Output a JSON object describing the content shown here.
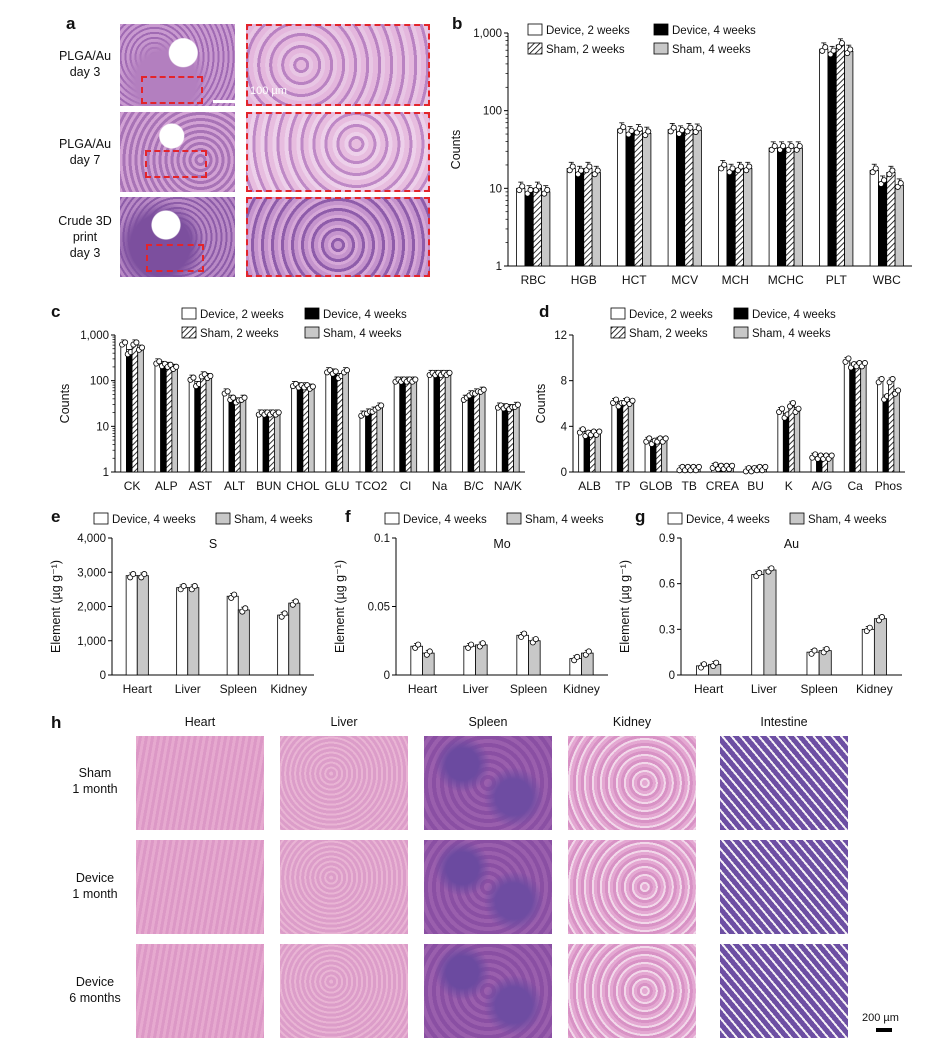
{
  "panels": {
    "a": {
      "label": "a",
      "rows": [
        "PLGA/Au\nday 3",
        "PLGA/Au\nday 7",
        "Crude 3D\nprint\nday 3"
      ],
      "scale_bar": "100 µm"
    },
    "b": {
      "label": "b"
    },
    "c": {
      "label": "c"
    },
    "d": {
      "label": "d"
    },
    "e": {
      "label": "e"
    },
    "f": {
      "label": "f"
    },
    "g": {
      "label": "g"
    },
    "h": {
      "label": "h",
      "columns": [
        "Heart",
        "Liver",
        "Spleen",
        "Kidney",
        "Intestine"
      ],
      "rows": [
        "Sham\n1 month",
        "Device\n1 month",
        "Device\n6 months"
      ],
      "scale_bar": "200 µm"
    }
  },
  "colors": {
    "white": "#ffffff",
    "black": "#000000",
    "hatch": "#ffffff",
    "grey": "#c8c8c8",
    "inset": "#e3242b",
    "he_pink": "#d58fc0",
    "he_purple": "#8a5aa8"
  },
  "chart_data": [
    {
      "id": "b",
      "type": "bar",
      "scale": "log",
      "ylim": [
        1,
        1000
      ],
      "yticks": [
        "1",
        "10",
        "100",
        "1,000"
      ],
      "ylabel": "Counts",
      "categories": [
        "RBC",
        "HGB",
        "HCT",
        "MCV",
        "MCH",
        "MCHC",
        "PLT",
        "WBC"
      ],
      "series": [
        {
          "name": "Device, 2 weeks",
          "values": [
            10,
            18,
            58,
            57,
            19,
            33,
            620,
            17
          ]
        },
        {
          "name": "Device, 4 weeks",
          "values": [
            9,
            16,
            52,
            53,
            17,
            33,
            560,
            12
          ]
        },
        {
          "name": "Sham, 2 weeks",
          "values": [
            10,
            18,
            55,
            57,
            18,
            33,
            700,
            16
          ]
        },
        {
          "name": "Sham, 4 weeks",
          "values": [
            9,
            16,
            51,
            56,
            18,
            33,
            580,
            11
          ]
        }
      ]
    },
    {
      "id": "c",
      "type": "bar",
      "scale": "log",
      "ylim": [
        1,
        1000
      ],
      "yticks": [
        "1",
        "10",
        "100",
        "1,000"
      ],
      "ylabel": "Counts",
      "categories": [
        "CK",
        "ALP",
        "AST",
        "ALT",
        "BUN",
        "CHOL",
        "GLU",
        "TCO2",
        "Cl",
        "Na",
        "B/C",
        "NA/K"
      ],
      "series": [
        {
          "name": "Device, 2 weeks",
          "values": [
            650,
            250,
            110,
            55,
            19,
            80,
            160,
            18,
            100,
            140,
            40,
            27
          ]
        },
        {
          "name": "Device, 4 weeks",
          "values": [
            400,
            220,
            80,
            40,
            19,
            75,
            150,
            20,
            100,
            140,
            50,
            26
          ]
        },
        {
          "name": "Sham, 2 weeks",
          "values": [
            650,
            210,
            130,
            35,
            19,
            75,
            120,
            22,
            100,
            140,
            55,
            25
          ]
        },
        {
          "name": "Sham, 4 weeks",
          "values": [
            500,
            190,
            120,
            40,
            19,
            70,
            160,
            27,
            100,
            140,
            60,
            28
          ]
        }
      ]
    },
    {
      "id": "d",
      "type": "bar",
      "scale": "linear",
      "ylim": [
        0,
        12
      ],
      "yticks": [
        "0",
        "4",
        "8",
        "12"
      ],
      "ylabel": "Counts",
      "categories": [
        "ALB",
        "TP",
        "GLOB",
        "TB",
        "CREA",
        "BU",
        "K",
        "A/G",
        "Ca",
        "Phos"
      ],
      "series": [
        {
          "name": "Device, 2 weeks",
          "values": [
            3.6,
            6.2,
            2.8,
            0.3,
            0.5,
            0.2,
            5.4,
            1.4,
            9.8,
            8.0
          ]
        },
        {
          "name": "Device, 4 weeks",
          "values": [
            3.3,
            5.9,
            2.6,
            0.3,
            0.4,
            0.2,
            4.9,
            1.3,
            9.3,
            6.5
          ]
        },
        {
          "name": "Sham, 2 weeks",
          "values": [
            3.4,
            6.2,
            2.8,
            0.3,
            0.4,
            0.3,
            5.9,
            1.3,
            9.4,
            8.0
          ]
        },
        {
          "name": "Sham, 4 weeks",
          "values": [
            3.4,
            6.1,
            2.8,
            0.3,
            0.4,
            0.3,
            5.4,
            1.3,
            9.4,
            7.0
          ]
        }
      ]
    },
    {
      "id": "e",
      "type": "bar",
      "scale": "linear",
      "ylim": [
        0,
        4000
      ],
      "yticks": [
        "0",
        "1,000",
        "2,000",
        "3,000",
        "4,000"
      ],
      "ylabel": "Element (µg g⁻¹)",
      "title": "S",
      "categories": [
        "Heart",
        "Liver",
        "Spleen",
        "Kidney"
      ],
      "series": [
        {
          "name": "Device, 4 weeks",
          "values": [
            2900,
            2550,
            2300,
            1750
          ]
        },
        {
          "name": "Sham, 4 weeks",
          "values": [
            2900,
            2550,
            1900,
            2100
          ]
        }
      ]
    },
    {
      "id": "f",
      "type": "bar",
      "scale": "linear",
      "ylim": [
        0,
        0.1
      ],
      "yticks": [
        "0",
        "0.05",
        "0.1"
      ],
      "ylabel": "Element (µg g⁻¹)",
      "title": "Mo",
      "categories": [
        "Heart",
        "Liver",
        "Spleen",
        "Kidney"
      ],
      "series": [
        {
          "name": "Device, 4 weeks",
          "values": [
            0.021,
            0.021,
            0.029,
            0.012
          ]
        },
        {
          "name": "Sham, 4 weeks",
          "values": [
            0.016,
            0.022,
            0.025,
            0.016
          ]
        }
      ]
    },
    {
      "id": "g",
      "type": "bar",
      "scale": "linear",
      "ylim": [
        0,
        0.9
      ],
      "yticks": [
        "0",
        "0.3",
        "0.6",
        "0.9"
      ],
      "ylabel": "Element (µg g⁻¹)",
      "title": "Au",
      "categories": [
        "Heart",
        "Liver",
        "Spleen",
        "Kidney"
      ],
      "series": [
        {
          "name": "Device, 4 weeks",
          "values": [
            0.06,
            0.66,
            0.15,
            0.3
          ]
        },
        {
          "name": "Sham, 4 weeks",
          "values": [
            0.07,
            0.69,
            0.16,
            0.37
          ]
        }
      ]
    }
  ]
}
